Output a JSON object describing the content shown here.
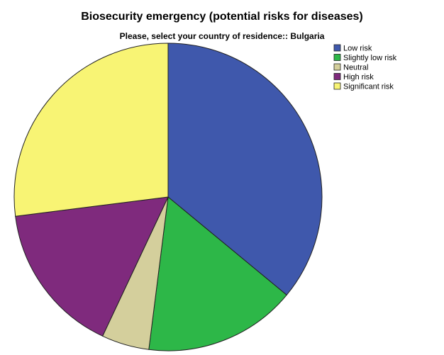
{
  "chart_data": {
    "type": "pie",
    "title": "Biosecurity emergency (potential risks for diseases)",
    "subtitle": "Please, select your country of residence:: Bulgaria",
    "categories": [
      "Low risk",
      "Slightly low risk",
      "Neutral",
      "High risk",
      "Significant risk"
    ],
    "values": [
      36,
      16,
      5,
      16,
      27
    ],
    "unit": "percent",
    "colors": [
      "#3f58ac",
      "#2db748",
      "#d4cf9c",
      "#7f2a7d",
      "#f8f474"
    ],
    "legend": {
      "position": "top-right"
    },
    "slice_border_color": "#222222"
  }
}
